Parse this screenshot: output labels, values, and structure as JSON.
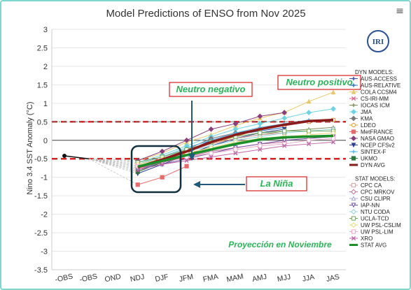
{
  "menu_icon": "hamburger-menu-icon",
  "logo_text": "IRI",
  "chart_data": {
    "type": "line",
    "title": "Model Predictions of ENSO from Nov 2025",
    "ylabel": "Nino 3.4 SST Anomaly (°C)",
    "xlabel": "",
    "ylim": [
      -3.5,
      3
    ],
    "yticks": [
      -3.5,
      -3,
      -2.5,
      -2,
      -1.5,
      -1,
      -0.5,
      0,
      0.5,
      1,
      1.5,
      2,
      2.5,
      3
    ],
    "categories": [
      "AUG-OBS",
      "SEP-OBS",
      "OND",
      "NDJ",
      "DJF",
      "JFM",
      "FMA",
      "MAM",
      "AMJ",
      "MJJ",
      "JJA",
      "JAS"
    ],
    "tick_labels": [
      "-OBS",
      "-OBS",
      "OND",
      "NDJ",
      "DJF",
      "JFM",
      "FMA",
      "MAM",
      "AMJ",
      "MJJ",
      "JJA",
      "JAS"
    ],
    "observed": {
      "x": [
        0,
        1
      ],
      "values": [
        -0.42,
        -0.5
      ]
    },
    "thresholds": [
      {
        "value": 0.5,
        "style": "red-dashed"
      },
      {
        "value": -0.5,
        "style": "red-dashed"
      },
      {
        "value": 0.5,
        "style": "gray-dashdot"
      }
    ],
    "annotations": {
      "neutro_negativo": "Neutro negativo",
      "neutro_positivo": "Neutro positivo",
      "la_nina": "La Niña",
      "proyeccion": "Proyección en Noviembre"
    },
    "legend": {
      "dyn_header": "DYN MODELS:",
      "stat_header": "STAT MODELS:"
    },
    "series": [
      {
        "name": "AUS-ACCESS",
        "group": "dyn",
        "color": "#3d4fa0",
        "marker": "plus",
        "values": [
          null,
          null,
          null,
          -0.75,
          -0.55,
          -0.3,
          0.0,
          0.2,
          0.3,
          0.4,
          null,
          null
        ]
      },
      {
        "name": "AUS-RELATIVE",
        "group": "dyn",
        "color": "#2c6fb8",
        "marker": "star",
        "values": [
          null,
          null,
          null,
          -0.8,
          -0.6,
          -0.35,
          -0.05,
          0.15,
          0.25,
          0.35,
          null,
          null
        ]
      },
      {
        "name": "COLA CCSM4",
        "group": "dyn",
        "color": "#e8c86a",
        "marker": "triangle",
        "values": [
          null,
          null,
          null,
          -0.55,
          -0.35,
          -0.05,
          0.15,
          0.4,
          0.6,
          0.75,
          1.05,
          1.3
        ]
      },
      {
        "name": "CS-IRI-MM",
        "group": "dyn",
        "color": "#d36a8c",
        "marker": "x",
        "values": [
          null,
          null,
          null,
          -0.8,
          -0.55,
          -0.3,
          -0.05,
          0.15,
          0.3,
          0.4,
          0.5,
          0.55
        ]
      },
      {
        "name": "IOCAS ICM",
        "group": "dyn",
        "color": "#7f8f5a",
        "marker": "plus",
        "values": [
          null,
          null,
          null,
          -0.85,
          -0.6,
          -0.4,
          -0.15,
          0.05,
          0.15,
          0.25,
          0.3,
          0.35
        ]
      },
      {
        "name": "JMA",
        "group": "dyn",
        "color": "#6fd3e0",
        "marker": "diamond",
        "values": [
          null,
          null,
          null,
          -0.6,
          -0.4,
          -0.15,
          0.1,
          0.3,
          0.45,
          0.6,
          0.75,
          0.85
        ]
      },
      {
        "name": "KMA",
        "group": "dyn",
        "color": "#7a7a7a",
        "marker": "diamond",
        "values": [
          null,
          null,
          null,
          -0.7,
          -0.5,
          -0.25,
          0.05,
          0.2,
          null,
          null,
          null,
          null
        ]
      },
      {
        "name": "LDEO",
        "group": "dyn",
        "color": "#e79a3c",
        "marker": "circle-open",
        "values": [
          null,
          null,
          null,
          -0.7,
          -0.5,
          -0.3,
          -0.1,
          0.1,
          0.3,
          0.4,
          0.5,
          0.55
        ]
      },
      {
        "name": "MetFRANCE",
        "group": "dyn",
        "color": "#e86a6a",
        "marker": "square",
        "values": [
          null,
          null,
          null,
          -1.2,
          -1.0,
          -0.7,
          null,
          null,
          null,
          null,
          null,
          null
        ]
      },
      {
        "name": "NASA GMAO",
        "group": "dyn",
        "color": "#8a3f7a",
        "marker": "diamond",
        "values": [
          null,
          null,
          null,
          -0.55,
          -0.3,
          0.0,
          0.3,
          0.45,
          0.65,
          0.75,
          null,
          null
        ]
      },
      {
        "name": "NCEP CFSv2",
        "group": "dyn",
        "color": "#2e3f8f",
        "marker": "triangle-down",
        "values": [
          null,
          null,
          null,
          -0.9,
          -0.65,
          -0.4,
          -0.15,
          0.05,
          0.2,
          0.3,
          null,
          null
        ]
      },
      {
        "name": "SINTEX-F",
        "group": "dyn",
        "color": "#57b7e6",
        "marker": "plus",
        "values": [
          null,
          null,
          null,
          -0.65,
          -0.45,
          -0.2,
          0.0,
          0.2,
          0.35,
          0.45,
          0.55,
          null
        ]
      },
      {
        "name": "UKMO",
        "group": "dyn",
        "color": "#2e7a3a",
        "marker": "square",
        "values": [
          null,
          null,
          null,
          -0.85,
          -0.6,
          -0.35,
          null,
          null,
          null,
          null,
          null,
          null
        ]
      },
      {
        "name": "DYN AVG",
        "group": "dyn",
        "color": "#8b1a1a",
        "marker": "none",
        "bold": true,
        "values": [
          null,
          null,
          null,
          -0.73,
          -0.52,
          -0.3,
          -0.05,
          0.15,
          0.3,
          0.42,
          0.52,
          0.55
        ]
      },
      {
        "name": "CPC CA",
        "group": "stat",
        "color": "#d9a0a0",
        "marker": "square-open",
        "values": [
          null,
          null,
          null,
          -0.65,
          -0.5,
          -0.3,
          -0.1,
          0.05,
          0.15,
          0.2,
          null,
          null
        ]
      },
      {
        "name": "CPC MRKOV",
        "group": "stat",
        "color": "#c07090",
        "marker": "diamond-open",
        "values": [
          null,
          null,
          null,
          -0.75,
          -0.6,
          -0.45,
          -0.3,
          -0.2,
          -0.1,
          -0.05,
          null,
          null
        ]
      },
      {
        "name": "CSU CLIPR",
        "group": "stat",
        "color": "#a8a8d8",
        "marker": "triangle-open",
        "values": [
          null,
          null,
          null,
          -0.7,
          -0.55,
          -0.4,
          null,
          null,
          null,
          null,
          null,
          null
        ]
      },
      {
        "name": "IAP-NN",
        "group": "stat",
        "color": "#7050a0",
        "marker": "triangle-down-open",
        "values": [
          null,
          null,
          null,
          -0.8,
          -0.65,
          -0.5,
          -0.35,
          -0.2,
          -0.1,
          0.0,
          0.05,
          0.1
        ]
      },
      {
        "name": "NTU CODA",
        "group": "stat",
        "color": "#8fd0d8",
        "marker": "diamond-open",
        "values": [
          null,
          null,
          null,
          -0.7,
          -0.5,
          -0.3,
          -0.15,
          0.0,
          0.1,
          0.2,
          0.25,
          0.3
        ]
      },
      {
        "name": "UCLA-TCD",
        "group": "stat",
        "color": "#6ea85a",
        "marker": "square-open",
        "values": [
          null,
          null,
          null,
          -0.6,
          -0.45,
          -0.25,
          -0.05,
          0.1,
          0.2,
          0.25,
          0.25,
          0.25
        ]
      },
      {
        "name": "UW PSL-CSLIM",
        "group": "stat",
        "color": "#e8d878",
        "marker": "diamond-open",
        "values": [
          null,
          null,
          null,
          -0.65,
          -0.5,
          -0.35,
          -0.2,
          -0.05,
          0.05,
          0.1,
          0.15,
          0.2
        ]
      },
      {
        "name": "UW PSL-LIM",
        "group": "stat",
        "color": "#e8a8c8",
        "marker": "square-open",
        "values": [
          null,
          null,
          null,
          -0.7,
          -0.55,
          -0.45,
          -0.35,
          -0.25,
          -0.15,
          -0.1,
          0.0,
          0.05
        ]
      },
      {
        "name": "XRO",
        "group": "stat",
        "color": "#c068a8",
        "marker": "x",
        "values": [
          null,
          null,
          null,
          -0.8,
          -0.65,
          -0.55,
          -0.45,
          -0.35,
          -0.25,
          -0.15,
          -0.1,
          -0.05
        ]
      },
      {
        "name": "STAT AVG",
        "group": "stat",
        "color": "#1a8f2a",
        "marker": "none",
        "bold": true,
        "values": [
          null,
          null,
          null,
          -0.71,
          -0.56,
          -0.4,
          -0.25,
          -0.1,
          0.02,
          0.08,
          0.1,
          0.12
        ]
      }
    ]
  }
}
